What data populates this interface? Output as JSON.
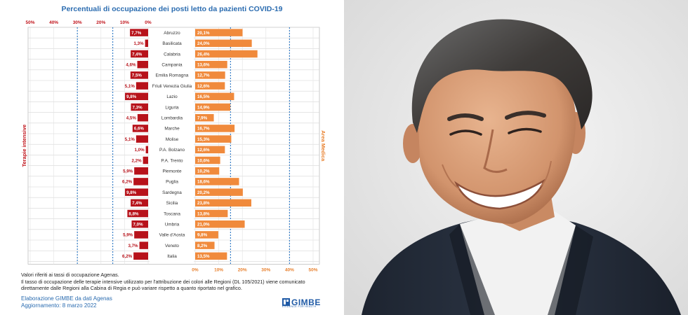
{
  "chart_data": {
    "type": "bar",
    "title": "Percentuali di occupazione dei posti letto da pazienti COVID-19",
    "left_axis_label": "Terapie intensive",
    "right_axis_label": "Area Medica",
    "left_ticks": [
      "50%",
      "40%",
      "30%",
      "20%",
      "10%",
      "0%"
    ],
    "right_ticks": [
      "0%",
      "10%",
      "20%",
      "30%",
      "40%",
      "50%"
    ],
    "xlim": [
      0,
      50
    ],
    "categories": [
      "Abruzzo",
      "Basilicata",
      "Calabria",
      "Campania",
      "Emilia Romagna",
      "Friuli Venezia Giulia",
      "Lazio",
      "Liguria",
      "Lombardia",
      "Marche",
      "Molise",
      "P.A. Bolzano",
      "P.A. Trento",
      "Piemonte",
      "Puglia",
      "Sardegna",
      "Sicilia",
      "Toscana",
      "Umbria",
      "Valle d'Aosta",
      "Veneto",
      "Italia"
    ],
    "series": [
      {
        "name": "Terapie intensive",
        "values": [
          7.7,
          1.3,
          7.4,
          4.6,
          7.5,
          5.1,
          9.8,
          7.3,
          4.5,
          6.6,
          5.1,
          1.0,
          2.2,
          5.9,
          6.2,
          9.8,
          7.4,
          8.8,
          7.0,
          5.9,
          3.7,
          6.2
        ],
        "labels": [
          "7,7%",
          "1,3%",
          "7,4%",
          "4,6%",
          "7,5%",
          "5,1%",
          "9,8%",
          "7,3%",
          "4,5%",
          "6,6%",
          "5,1%",
          "1,0%",
          "2,2%",
          "5,9%",
          "6,2%",
          "9,8%",
          "7,4%",
          "8,8%",
          "7,0%",
          "5,9%",
          "3,7%",
          "6,2%"
        ]
      },
      {
        "name": "Area Medica",
        "values": [
          20.1,
          24.0,
          26.4,
          13.6,
          12.7,
          12.6,
          16.5,
          14.9,
          7.9,
          16.7,
          15.3,
          12.6,
          10.6,
          10.2,
          18.6,
          20.2,
          23.8,
          13.8,
          21.0,
          9.8,
          8.2,
          13.5
        ],
        "labels": [
          "20,1%",
          "24,0%",
          "26,4%",
          "13,6%",
          "12,7%",
          "12,6%",
          "16,5%",
          "14,9%",
          "7,9%",
          "16,7%",
          "15,3%",
          "12,6%",
          "10,6%",
          "10,2%",
          "18,6%",
          "20,2%",
          "23,8%",
          "13,8%",
          "21,0%",
          "9,8%",
          "8,2%",
          "13,5%"
        ]
      }
    ],
    "thresholds": [
      30,
      15,
      15,
      40
    ],
    "grid": true,
    "colors": {
      "title": "#2b6cb0",
      "intensive_bar": "#b7121a",
      "medical_bar": "#f08a3c",
      "left_axis": "#c0141b",
      "right_axis": "#e8812f",
      "threshold_line": "#3a80c9",
      "grid": "#bfbfbf"
    }
  },
  "notes": {
    "line1": "Valori riferiti ai tassi di occupazione Agenas.",
    "line2": "Il tasso di occupazione delle terapie intensive utilizzato per l'attribuzione dei colori alle Regioni (DL 105/2021) viene comunicato direttamente dalle Regioni alla Cabina di Regia e può variare rispetto a quanto riportato nel grafico.",
    "source": "Elaborazione GIMBE da dati Agenas",
    "updated": "Aggiornamento: 8 marzo 2022"
  },
  "logo": {
    "name": "GIMBE",
    "tagline": "EVIDENCE FOR HEALTH"
  }
}
